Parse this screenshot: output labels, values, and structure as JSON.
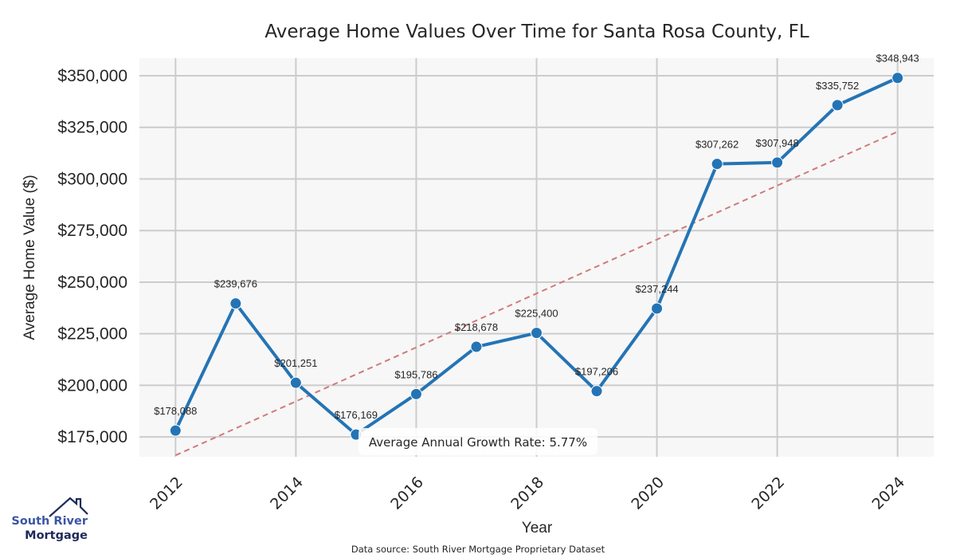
{
  "chart_data": {
    "type": "line",
    "title": "Average Home Values Over Time for Santa Rosa County, FL",
    "xlabel": "Year",
    "ylabel": "Average Home Value ($)",
    "x": [
      2012,
      2013,
      2014,
      2015,
      2016,
      2017,
      2018,
      2019,
      2020,
      2021,
      2022,
      2023,
      2024
    ],
    "series": [
      {
        "name": "Average Home Value",
        "color": "#2474b5",
        "values": [
          178088,
          239676,
          201251,
          176169,
          195786,
          218678,
          225400,
          197206,
          237244,
          307262,
          307948,
          335752,
          348943
        ],
        "labels": [
          "$178,088",
          "$239,676",
          "$201,251",
          "$176,169",
          "$195,786",
          "$218,678",
          "$225,400",
          "$197,206",
          "$237,244",
          "$307,262",
          "$307,948",
          "$335,752",
          "$348,943"
        ]
      }
    ],
    "trend_line": {
      "color": "#d07a7a",
      "style": "dashed",
      "x": [
        2012,
        2024
      ],
      "values": [
        166100,
        322900
      ]
    },
    "xticks": [
      2012,
      2014,
      2016,
      2018,
      2020,
      2022,
      2024
    ],
    "xtick_labels": [
      "2012",
      "2014",
      "2016",
      "2018",
      "2020",
      "2022",
      "2024"
    ],
    "yticks": [
      175000,
      200000,
      225000,
      250000,
      275000,
      300000,
      325000,
      350000
    ],
    "ytick_labels": [
      "$175,000",
      "$200,000",
      "$225,000",
      "$250,000",
      "$275,000",
      "$300,000",
      "$325,000",
      "$350,000"
    ],
    "xlim": [
      2011.4,
      2024.6
    ],
    "ylim": [
      165400,
      358500
    ],
    "grid": true,
    "annotation": "Average Annual Growth Rate: 5.77%",
    "source": "Data source: South River Mortgage Proprietary Dataset"
  },
  "logo": {
    "line1": "South River",
    "line2": "Mortgage"
  },
  "colors": {
    "plot_bg": "#f7f7f7",
    "grid": "#cccccc",
    "logo_house": "#1e2a5a"
  }
}
